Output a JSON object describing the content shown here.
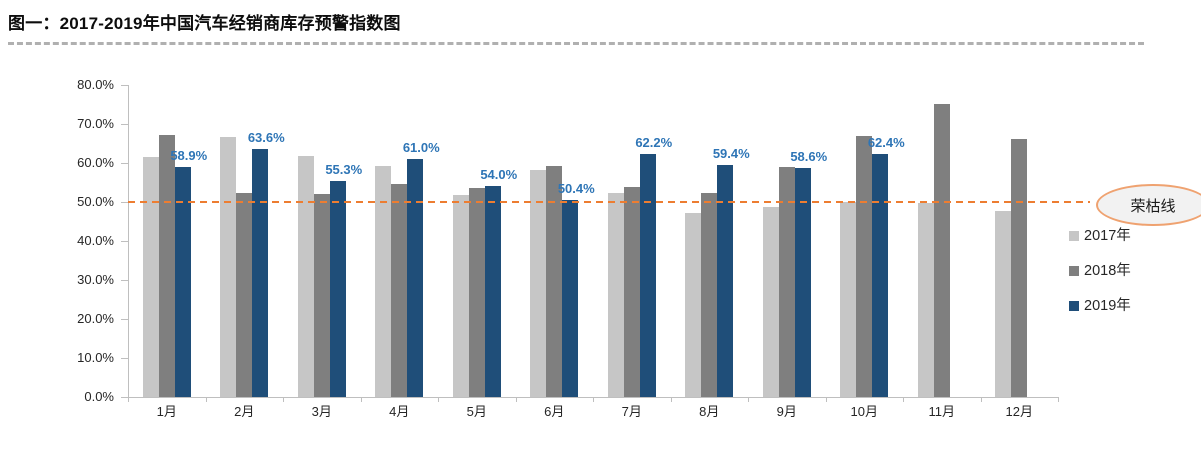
{
  "header": {
    "title": "图一：2017-2019年中国汽车经销商库存预警指数图"
  },
  "chart_data": {
    "type": "bar",
    "title": "图一：2017-2019年中国汽车经销商库存预警指数图",
    "categories": [
      "1月",
      "2月",
      "3月",
      "4月",
      "5月",
      "6月",
      "7月",
      "8月",
      "9月",
      "10月",
      "11月",
      "12月"
    ],
    "series": [
      {
        "name": "2017年",
        "color": "#c6c6c6",
        "values": [
          61.5,
          66.6,
          61.9,
          59.2,
          51.8,
          58.2,
          52.4,
          47.2,
          48.7,
          49.9,
          49.7,
          47.7
        ]
      },
      {
        "name": "2018年",
        "color": "#7f7f7f",
        "values": [
          67.2,
          52.3,
          52.1,
          54.6,
          53.7,
          59.2,
          53.9,
          52.2,
          58.9,
          66.9,
          75.1,
          66.1
        ]
      },
      {
        "name": "2019年",
        "color": "#1f4e79",
        "values": [
          58.9,
          63.6,
          55.3,
          61.0,
          54.0,
          50.4,
          62.2,
          59.4,
          58.6,
          62.4,
          null,
          null
        ],
        "data_labels": [
          "58.9%",
          "63.6%",
          "55.3%",
          "61.0%",
          "54.0%",
          "50.4%",
          "62.2%",
          "59.4%",
          "58.6%",
          "62.4%",
          null,
          null
        ],
        "label_color": "#2e75b6"
      }
    ],
    "xlabel": "",
    "ylabel": "",
    "ylim": [
      0,
      80
    ],
    "y_ticks": [
      "80.0%",
      "70.0%",
      "60.0%",
      "50.0%",
      "40.0%",
      "30.0%",
      "20.0%",
      "10.0%",
      "0.0%"
    ],
    "grid": false,
    "legend_position": "right",
    "reference_line": {
      "value": 50,
      "style": "dashed",
      "color": "#ed7d31",
      "label": "荣枯线"
    }
  }
}
